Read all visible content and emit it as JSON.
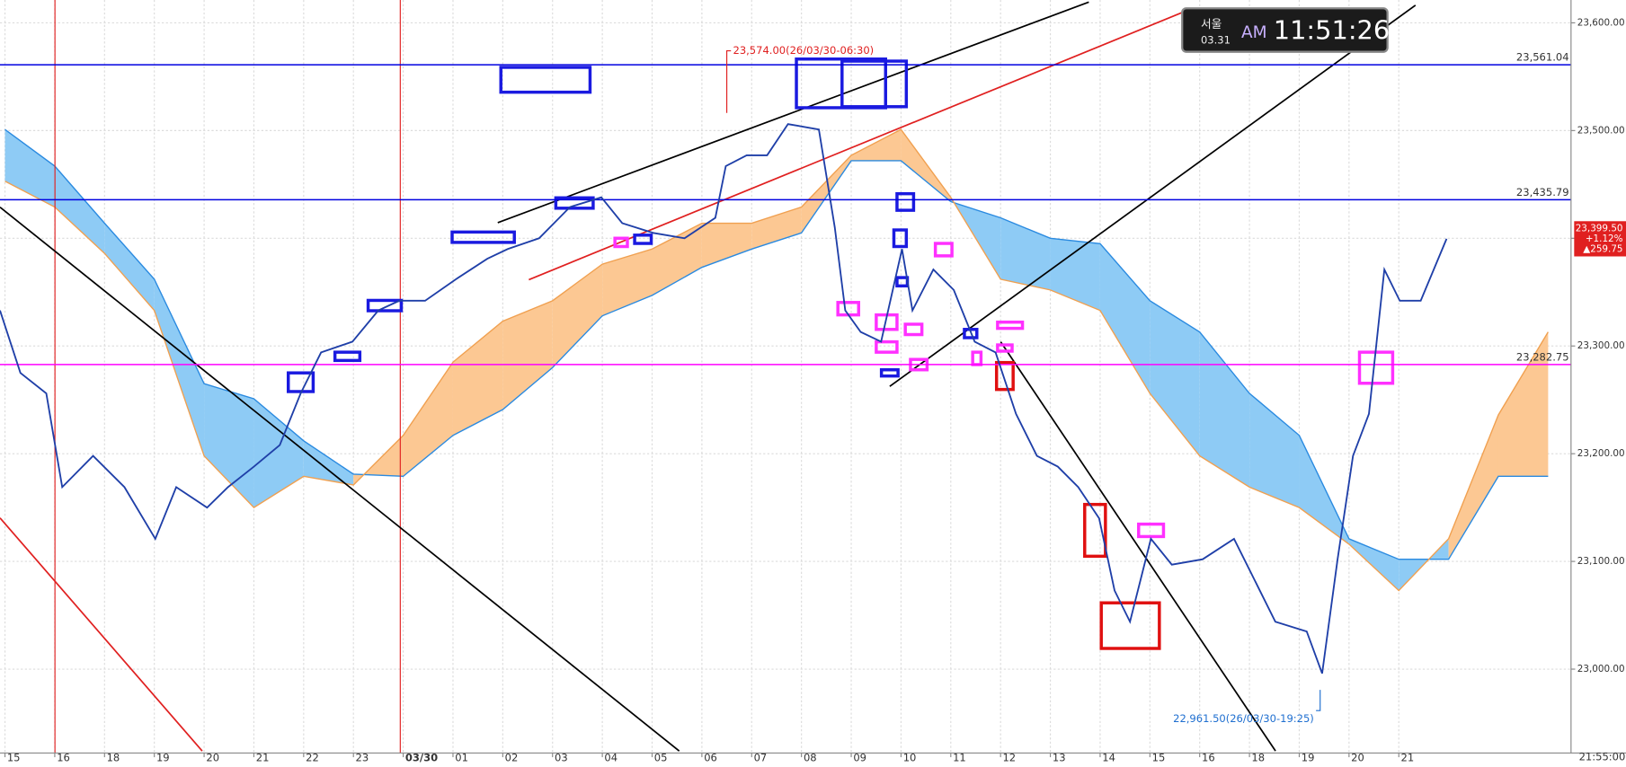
{
  "chart_data": {
    "type": "line",
    "ylim": [
      22922.1,
      23621.2
    ],
    "yticks": [
      {
        "value": 23600,
        "label": "23,600.00"
      },
      {
        "value": 23500,
        "label": "23,500.00"
      },
      {
        "value": 23400,
        "label": "23,400.00"
      },
      {
        "value": 23300,
        "label": "23,300.00"
      },
      {
        "value": 23200,
        "label": "23,200.00"
      },
      {
        "value": 23100,
        "label": "23,100.00"
      },
      {
        "value": 23000,
        "label": "23,000.00"
      }
    ],
    "xlim": [
      -0.1,
      31.46
    ],
    "xticks": [
      {
        "value": 0,
        "label": "15"
      },
      {
        "value": 1,
        "label": "16"
      },
      {
        "value": 2,
        "label": "18"
      },
      {
        "value": 3,
        "label": "19"
      },
      {
        "value": 4,
        "label": "20"
      },
      {
        "value": 5,
        "label": "21"
      },
      {
        "value": 6,
        "label": "22"
      },
      {
        "value": 7,
        "label": "23"
      },
      {
        "value": 8,
        "label": "03/30"
      },
      {
        "value": 9,
        "label": "01"
      },
      {
        "value": 10,
        "label": "02"
      },
      {
        "value": 11,
        "label": "03"
      },
      {
        "value": 12,
        "label": "04"
      },
      {
        "value": 13,
        "label": "05"
      },
      {
        "value": 14,
        "label": "06"
      },
      {
        "value": 15,
        "label": "07"
      },
      {
        "value": 16,
        "label": "08"
      },
      {
        "value": 17,
        "label": "09"
      },
      {
        "value": 18,
        "label": "10"
      },
      {
        "value": 19,
        "label": "11"
      },
      {
        "value": 20,
        "label": "12"
      },
      {
        "value": 21,
        "label": "13"
      },
      {
        "value": 22,
        "label": "14"
      },
      {
        "value": 23,
        "label": "15"
      },
      {
        "value": 24,
        "label": "16"
      },
      {
        "value": 25,
        "label": "18"
      },
      {
        "value": 26,
        "label": "19"
      },
      {
        "value": 27,
        "label": "20"
      },
      {
        "value": 28,
        "label": "21"
      }
    ],
    "time_label": "21:55:00",
    "grid": true,
    "x": [
      -0.1,
      0.31,
      0.83,
      1.15,
      1.77,
      2.4,
      3.02,
      3.44,
      4.06,
      4.48,
      5,
      5.52,
      5.94,
      6.35,
      6.98,
      7.5,
      7.92,
      8.44,
      9.06,
      9.69,
      10.1,
      10.73,
      11.35,
      11.98,
      12.4,
      13.02,
      13.65,
      14.27,
      14.48,
      14.9,
      15.31,
      15.73,
      16.35,
      16.67,
      16.88,
      17.19,
      17.6,
      18.02,
      18.23,
      18.65,
      19.06,
      19.48,
      19.9,
      20.31,
      20.73,
      21.15,
      21.56,
      21.98,
      22.29,
      22.6,
      23.02,
      23.44,
      24.06,
      24.69,
      25.1,
      25.52,
      26.15,
      26.46,
      26.77,
      27.08,
      27.4,
      27.71,
      28.02,
      28.44,
      28.96
    ],
    "series": [
      {
        "color": "#1f3fa8",
        "values": [
          23333,
          23275,
          23256,
          23169,
          23198,
          23169,
          23121,
          23169,
          23150,
          23169,
          23188,
          23208,
          23256,
          23294,
          23304,
          23333,
          23342,
          23342,
          23362,
          23381,
          23390,
          23400,
          23429,
          23438,
          23414,
          23405,
          23400,
          23419,
          23467,
          23477,
          23477,
          23506,
          23501,
          23410,
          23333,
          23313,
          23304,
          23390,
          23333,
          23371,
          23352,
          23304,
          23294,
          23237,
          23198,
          23188,
          23169,
          23140,
          23073,
          23044,
          23121,
          23097,
          23102,
          23121,
          23083,
          23044,
          23035,
          22996,
          23102,
          23198,
          23237,
          23371,
          23342,
          23342,
          23399.5
        ]
      }
    ],
    "cloud": {
      "x": [
        0,
        1,
        2,
        3,
        4,
        5,
        6,
        7,
        8,
        9,
        10,
        11,
        12,
        13,
        14,
        15,
        16,
        17,
        18,
        19,
        20,
        21,
        22,
        23,
        24,
        25,
        26,
        27,
        28,
        29,
        30,
        31
      ],
      "span_a": [
        23501,
        23467,
        23414,
        23362,
        23265,
        23251,
        23212,
        23181,
        23179,
        23217,
        23241,
        23280,
        23328,
        23347,
        23373,
        23390,
        23405,
        23472,
        23472,
        23434,
        23419,
        23400,
        23395,
        23342,
        23313,
        23256,
        23217,
        23121,
        23102,
        23102,
        23179,
        23179
      ],
      "span_b": [
        23453,
        23429,
        23386,
        23333,
        23198,
        23150,
        23179,
        23171,
        23217,
        23285,
        23323,
        23342,
        23376,
        23390,
        23414,
        23414,
        23429,
        23477,
        23501,
        23438,
        23362,
        23352,
        23333,
        23256,
        23198,
        23169,
        23150,
        23116,
        23073,
        23121,
        23236,
        23313
      ],
      "up_color": "#8ecbf5",
      "down_color": "#fcc893"
    },
    "reference_lines": [
      {
        "value": 23561.04,
        "label": "23,561.04",
        "color": "#0000e0"
      },
      {
        "value": 23435.79,
        "label": "23,435.79",
        "color": "#0000e0"
      },
      {
        "value": 23282.75,
        "label": "23,282.75",
        "color": "#ff00ff"
      }
    ],
    "high": {
      "value": 23574,
      "x": 14.5,
      "label": "23,574.00(26/03/30-06:30)"
    },
    "low": {
      "value": 22961.5,
      "x": 26.42,
      "label": "22,961.50(26/03/30-19:25)"
    },
    "last": {
      "value": 23399.5,
      "label": "23,399.50",
      "change_pct": "+1.12%",
      "change": "▲259.75"
    }
  },
  "clock": {
    "city": "서울",
    "date": "03.31",
    "period": "AM",
    "time": "11:51:26"
  }
}
